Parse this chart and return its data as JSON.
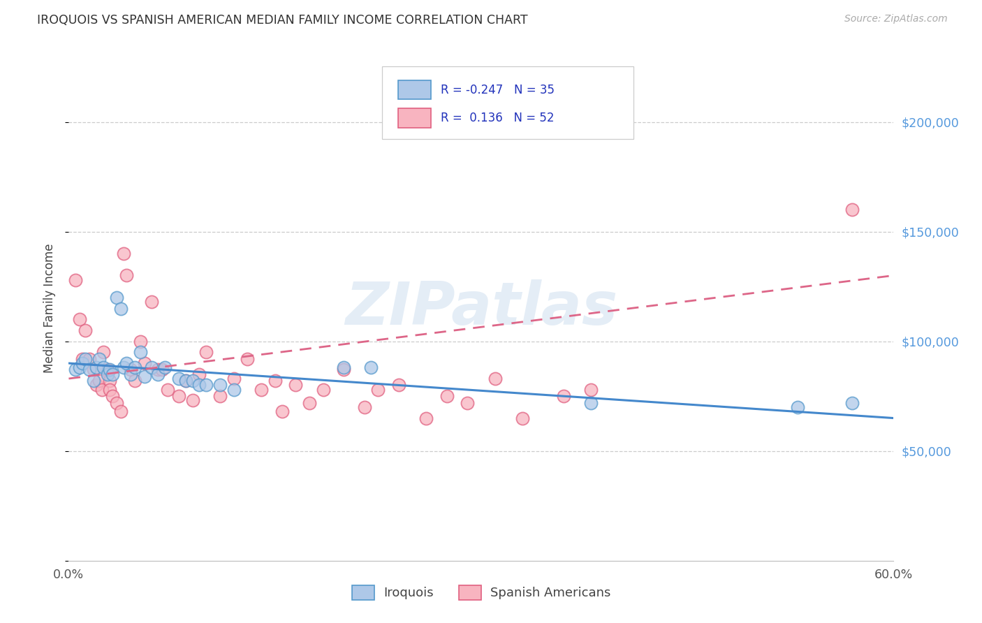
{
  "title": "IROQUOIS VS SPANISH AMERICAN MEDIAN FAMILY INCOME CORRELATION CHART",
  "source": "Source: ZipAtlas.com",
  "ylabel": "Median Family Income",
  "ytick_values": [
    50000,
    100000,
    150000,
    200000
  ],
  "ylim": [
    0,
    230000
  ],
  "xlim": [
    0.0,
    0.6
  ],
  "watermark": "ZIPatlas",
  "blue_fill": "#aec8e8",
  "pink_fill": "#f8b4c0",
  "blue_edge": "#5599cc",
  "pink_edge": "#e06080",
  "blue_line": "#4488cc",
  "pink_line": "#dd6688",
  "legend_text_color": "#2233bb",
  "iroquois_x": [
    0.005,
    0.008,
    0.01,
    0.012,
    0.015,
    0.018,
    0.02,
    0.022,
    0.025,
    0.028,
    0.03,
    0.032,
    0.035,
    0.038,
    0.04,
    0.042,
    0.045,
    0.048,
    0.052,
    0.055,
    0.06,
    0.065,
    0.07,
    0.08,
    0.085,
    0.09,
    0.095,
    0.1,
    0.11,
    0.12,
    0.2,
    0.22,
    0.38,
    0.53,
    0.57
  ],
  "iroquois_y": [
    87000,
    88000,
    90000,
    92000,
    87000,
    82000,
    88000,
    92000,
    88000,
    85000,
    87000,
    85000,
    120000,
    115000,
    88000,
    90000,
    85000,
    88000,
    95000,
    84000,
    88000,
    85000,
    88000,
    83000,
    82000,
    82000,
    80000,
    80000,
    80000,
    78000,
    88000,
    88000,
    72000,
    70000,
    72000
  ],
  "spanish_x": [
    0.005,
    0.008,
    0.01,
    0.012,
    0.015,
    0.018,
    0.02,
    0.022,
    0.024,
    0.025,
    0.028,
    0.03,
    0.03,
    0.032,
    0.035,
    0.038,
    0.04,
    0.042,
    0.045,
    0.048,
    0.052,
    0.055,
    0.06,
    0.065,
    0.068,
    0.072,
    0.08,
    0.085,
    0.09,
    0.095,
    0.1,
    0.11,
    0.12,
    0.13,
    0.14,
    0.15,
    0.155,
    0.165,
    0.175,
    0.185,
    0.2,
    0.215,
    0.225,
    0.24,
    0.26,
    0.275,
    0.29,
    0.31,
    0.33,
    0.36,
    0.38,
    0.57
  ],
  "spanish_y": [
    128000,
    110000,
    92000,
    105000,
    92000,
    87000,
    80000,
    82000,
    78000,
    95000,
    87000,
    82000,
    78000,
    75000,
    72000,
    68000,
    140000,
    130000,
    87000,
    82000,
    100000,
    90000,
    118000,
    87000,
    87000,
    78000,
    75000,
    82000,
    73000,
    85000,
    95000,
    75000,
    83000,
    92000,
    78000,
    82000,
    68000,
    80000,
    72000,
    78000,
    87000,
    70000,
    78000,
    80000,
    65000,
    75000,
    72000,
    83000,
    65000,
    75000,
    78000,
    160000
  ]
}
